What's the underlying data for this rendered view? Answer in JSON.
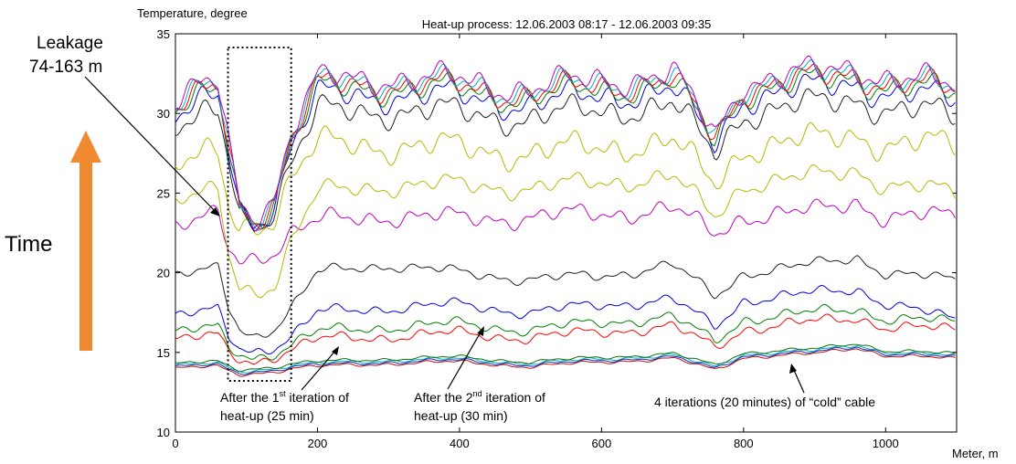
{
  "chart_data": {
    "type": "line",
    "title": "Heat-up process: 12.06.2003 08:17 - 12.06.2003 09:35",
    "ylabel": "Temperature, degree",
    "xlabel": "Meter, m",
    "xlim": [
      0,
      1100
    ],
    "ylim": [
      10,
      35
    ],
    "xticks": [
      0,
      200,
      400,
      600,
      800,
      1000
    ],
    "yticks": [
      10,
      15,
      20,
      25,
      30,
      35
    ],
    "grid": false,
    "colors": {
      "cold": [
        "#00b0c0",
        "#1030c0",
        "#c01010",
        "#107010",
        "#606060"
      ],
      "black": "#202020",
      "blue": "#0000e0",
      "green": "#008000",
      "red": "#ff0000",
      "yellow": "#b8b800",
      "magenta": "#c000c0",
      "arrow": "#f08a30"
    },
    "series": [
      {
        "x": [
          0,
          60,
          75,
          90,
          110,
          140,
          163,
          200,
          300,
          400,
          500,
          600,
          700,
          760,
          800,
          900,
          960,
          1000,
          1100
        ],
        "y": [
          14.2,
          14.3,
          14.0,
          13.8,
          13.9,
          14.0,
          14.2,
          14.3,
          14.5,
          14.6,
          14.3,
          14.6,
          14.8,
          14.1,
          14.9,
          15.1,
          15.5,
          15.0,
          14.8
        ]
      },
      {
        "x": [
          0,
          60,
          75,
          90,
          110,
          140,
          163,
          200,
          300,
          400,
          500,
          600,
          700,
          760,
          800,
          900,
          960,
          1000,
          1100
        ],
        "y": [
          14.1,
          14.2,
          13.9,
          13.7,
          13.8,
          13.9,
          14.1,
          14.2,
          14.4,
          14.5,
          14.2,
          14.5,
          14.7,
          14.0,
          14.8,
          15.0,
          15.4,
          14.9,
          14.7
        ]
      },
      {
        "x": [
          0,
          60,
          75,
          90,
          110,
          140,
          163,
          200,
          300,
          400,
          500,
          600,
          700,
          760,
          800,
          900,
          960,
          1000,
          1100
        ],
        "y": [
          14.0,
          14.1,
          13.8,
          13.6,
          13.7,
          13.8,
          14.0,
          14.1,
          14.3,
          14.4,
          14.1,
          14.4,
          14.6,
          13.9,
          14.7,
          14.9,
          15.3,
          14.8,
          14.6
        ]
      },
      {
        "x": [
          0,
          60,
          75,
          90,
          110,
          140,
          163,
          200,
          300,
          400,
          500,
          600,
          700,
          760,
          800,
          900,
          960,
          1000,
          1100
        ],
        "y": [
          14.3,
          14.4,
          14.1,
          13.9,
          14.0,
          14.1,
          14.3,
          14.4,
          14.6,
          14.7,
          14.4,
          14.7,
          14.9,
          14.2,
          15.0,
          15.2,
          15.6,
          15.1,
          14.9
        ]
      },
      {
        "x": [
          0,
          60,
          75,
          90,
          110,
          140,
          163,
          200,
          300,
          400,
          500,
          600,
          700,
          760,
          800,
          900,
          960,
          1000,
          1100
        ],
        "y": [
          15.8,
          16.0,
          15.0,
          14.6,
          14.4,
          14.8,
          15.2,
          15.8,
          16.0,
          16.2,
          15.9,
          16.3,
          16.6,
          15.3,
          16.5,
          16.9,
          17.2,
          16.6,
          16.4
        ]
      },
      {
        "x": [
          0,
          60,
          75,
          90,
          110,
          140,
          163,
          200,
          300,
          400,
          500,
          600,
          700,
          760,
          800,
          900,
          960,
          1000,
          1100
        ],
        "y": [
          16.3,
          16.5,
          15.3,
          14.9,
          14.7,
          15.0,
          15.5,
          16.3,
          16.6,
          16.8,
          16.4,
          16.9,
          17.2,
          15.7,
          17.1,
          17.5,
          17.8,
          17.1,
          16.9
        ]
      },
      {
        "x": [
          0,
          60,
          75,
          90,
          110,
          140,
          163,
          200,
          300,
          400,
          500,
          600,
          700,
          760,
          800,
          900,
          960,
          1000,
          1100
        ],
        "y": [
          17.3,
          17.6,
          16.0,
          15.3,
          15.1,
          15.4,
          16.0,
          17.5,
          17.8,
          18.0,
          17.5,
          18.0,
          18.3,
          16.6,
          18.3,
          18.7,
          19.0,
          18.1,
          17.0
        ]
      },
      {
        "x": [
          0,
          60,
          75,
          90,
          110,
          140,
          163,
          200,
          300,
          400,
          500,
          600,
          700,
          760,
          800,
          900,
          960,
          1000,
          1100
        ],
        "y": [
          19.8,
          20.2,
          17.8,
          16.5,
          16.0,
          16.6,
          17.8,
          20.0,
          20.5,
          20.0,
          19.6,
          19.8,
          20.5,
          18.5,
          20.0,
          20.5,
          21.0,
          20.0,
          19.5
        ]
      },
      {
        "x": [
          0,
          60,
          75,
          90,
          110,
          140,
          163,
          200,
          300,
          400,
          500,
          600,
          700,
          760,
          800,
          900,
          960,
          1000,
          1100
        ],
        "y": [
          22.8,
          23.5,
          21.5,
          20.8,
          21.0,
          21.5,
          22.5,
          23.2,
          23.6,
          23.4,
          23.5,
          23.7,
          24.0,
          22.4,
          23.6,
          23.8,
          24.5,
          23.5,
          23.5
        ]
      },
      {
        "x": [
          0,
          60,
          75,
          90,
          110,
          140,
          163,
          200,
          300,
          400,
          500,
          600,
          700,
          760,
          800,
          900,
          960,
          1000,
          1100
        ],
        "y": [
          24.5,
          25.0,
          21.0,
          19.2,
          18.8,
          19.5,
          22.0,
          25.0,
          25.5,
          25.5,
          25.3,
          25.7,
          26.0,
          23.5,
          25.6,
          26.0,
          26.5,
          25.5,
          25.0
        ]
      },
      {
        "x": [
          0,
          60,
          75,
          90,
          110,
          140,
          163,
          200,
          300,
          400,
          500,
          600,
          700,
          760,
          800,
          900,
          960,
          1000,
          1100
        ],
        "y": [
          26.8,
          27.3,
          24.0,
          22.8,
          23.0,
          23.8,
          26.0,
          28.0,
          28.0,
          27.8,
          27.5,
          27.9,
          28.2,
          25.5,
          27.9,
          28.3,
          28.8,
          28.0,
          28.0
        ]
      },
      {
        "x": [
          0,
          60,
          75,
          90,
          110,
          140,
          163,
          200,
          300,
          400,
          500,
          600,
          700,
          760,
          800,
          900,
          960,
          1000,
          1100
        ],
        "y": [
          29.0,
          29.8,
          27.0,
          23.8,
          23.2,
          24.3,
          27.0,
          30.0,
          30.2,
          30.0,
          29.7,
          30.2,
          30.5,
          27.5,
          30.1,
          30.5,
          31.0,
          30.3,
          29.8
        ]
      },
      {
        "x": [
          0,
          60,
          75,
          90,
          110,
          140,
          163,
          200,
          300,
          400,
          500,
          600,
          700,
          760,
          800,
          900,
          960,
          1000,
          1100
        ],
        "y": [
          29.8,
          30.8,
          27.6,
          23.9,
          23.3,
          24.5,
          28.0,
          31.0,
          31.2,
          31.0,
          30.6,
          31.1,
          31.5,
          28.0,
          31.1,
          31.5,
          32.0,
          31.3,
          30.8
        ]
      },
      {
        "x": [
          0,
          60,
          75,
          90,
          110,
          140,
          163,
          200,
          300,
          400,
          500,
          600,
          700,
          760,
          800,
          900,
          960,
          1000,
          1100
        ],
        "y": [
          30.2,
          31.2,
          27.8,
          24.0,
          23.4,
          24.6,
          28.3,
          31.4,
          31.7,
          31.4,
          31.0,
          31.5,
          31.9,
          28.3,
          31.5,
          31.9,
          32.4,
          31.7,
          31.2
        ]
      },
      {
        "x": [
          0,
          60,
          75,
          90,
          110,
          140,
          163,
          200,
          300,
          400,
          500,
          600,
          700,
          760,
          800,
          900,
          960,
          1000,
          1100
        ],
        "y": [
          30.4,
          31.4,
          27.9,
          24.1,
          23.5,
          24.7,
          28.5,
          31.6,
          31.9,
          31.6,
          31.2,
          31.7,
          32.1,
          28.4,
          31.7,
          32.1,
          32.6,
          31.9,
          31.4
        ]
      },
      {
        "x": [
          0,
          60,
          75,
          90,
          110,
          140,
          163,
          200,
          300,
          400,
          500,
          600,
          700,
          760,
          800,
          900,
          960,
          1000,
          1100
        ],
        "y": [
          30.6,
          31.6,
          28.0,
          24.2,
          23.6,
          24.8,
          28.7,
          31.8,
          32.1,
          31.8,
          31.4,
          31.9,
          32.3,
          28.5,
          31.9,
          32.3,
          32.8,
          32.1,
          31.5
        ]
      },
      {
        "x": [
          0,
          60,
          75,
          90,
          110,
          140,
          163,
          200,
          300,
          400,
          500,
          600,
          700,
          760,
          800,
          900,
          960,
          1000,
          1100
        ],
        "y": [
          30.8,
          31.8,
          28.1,
          24.3,
          23.7,
          24.9,
          28.9,
          32.0,
          32.3,
          32.0,
          31.6,
          32.1,
          32.5,
          28.6,
          32.1,
          32.5,
          33.0,
          32.3,
          31.6
        ]
      }
    ],
    "series_colors": [
      "cold.0",
      "cold.1",
      "cold.2",
      "cold.3",
      "red",
      "green",
      "blue",
      "black",
      "magenta",
      "yellow",
      "yellow",
      "black",
      "blue",
      "green",
      "red",
      "cold.0",
      "magenta"
    ],
    "annotations": {
      "leakage": "Leakage\n74-163 m",
      "iter1_prefix": "After the 1",
      "iter1_sup": "st",
      "iter1_suffix": " iteration of",
      "iter1_line2": "heat-up (25 min)",
      "iter2_prefix": "After the 2",
      "iter2_sup": "nd",
      "iter2_suffix": " iteration of",
      "iter2_line2": "heat-up (30 min)",
      "cold": "4 iterations (20 minutes) of “cold” cable",
      "time": "Time"
    },
    "leakage_range": [
      74,
      163
    ]
  }
}
